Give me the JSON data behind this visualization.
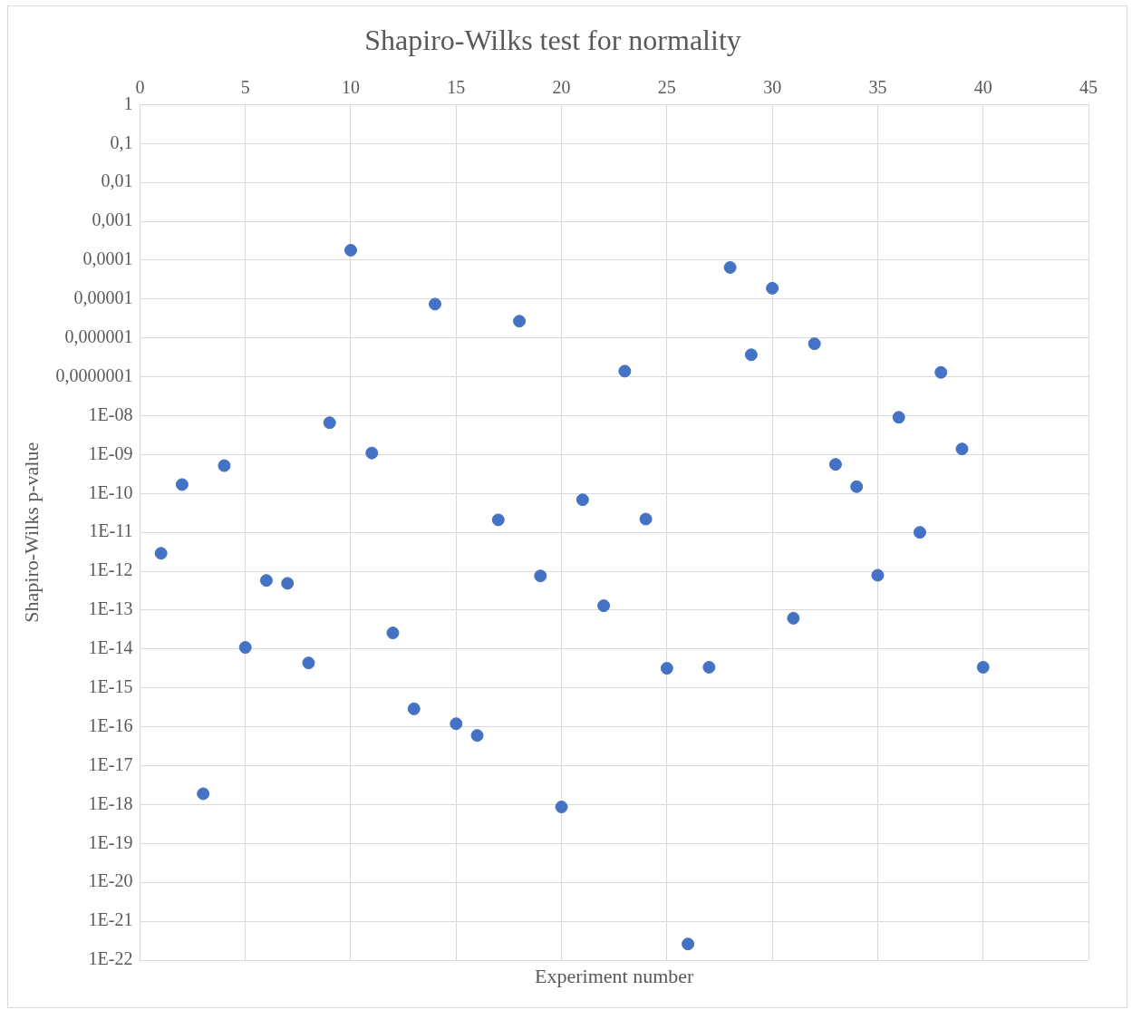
{
  "chart_data": {
    "type": "scatter",
    "title": "Shapiro-Wilks test for normality",
    "xlabel": "Experiment number",
    "ylabel": "Shapiro-Wilks p-value",
    "log": "y",
    "grid": true,
    "legend": false,
    "marker": "circle",
    "x": [
      1,
      2,
      3,
      4,
      5,
      6,
      7,
      8,
      9,
      10,
      11,
      12,
      13,
      14,
      15,
      16,
      17,
      18,
      19,
      20,
      21,
      22,
      23,
      24,
      25,
      26,
      27,
      28,
      29,
      30,
      31,
      32,
      33,
      34,
      35,
      36,
      37,
      38,
      39,
      40
    ],
    "series": [
      {
        "color": "#4472c4",
        "values": [
          2.9e-12,
          1.7e-10,
          1.9e-18,
          5.2e-10,
          1.1e-14,
          5.8e-13,
          4.9e-13,
          4.4e-15,
          6.6e-09,
          0.00018,
          1.1e-09,
          2.6e-14,
          2.9e-16,
          7.4e-06,
          1.2e-16,
          6e-17,
          2.1e-11,
          2.7e-06,
          7.6e-13,
          8.7e-19,
          6.9e-11,
          1.3e-13,
          1.4e-07,
          2.2e-11,
          3.2e-15,
          2.6e-22,
          3.4e-15,
          6.5e-05,
          3.7e-07,
          1.9e-05,
          6.2e-14,
          7.1e-07,
          5.6e-10,
          1.5e-10,
          7.9e-13,
          9.1e-09,
          1e-11,
          1.3e-07,
          1.4e-09,
          3.4e-15
        ]
      }
    ],
    "xlim": [
      0,
      45
    ],
    "xticks": [
      0,
      5,
      10,
      15,
      20,
      25,
      30,
      35,
      40,
      45
    ],
    "ylim": [
      1e-22,
      1
    ],
    "yticks": [
      1,
      {
        "value": 0.1,
        "label": "0,1"
      },
      {
        "value": 0.01,
        "label": "0,01"
      },
      {
        "value": 0.001,
        "label": "0,001"
      },
      {
        "value": 0.0001,
        "label": "0,0001"
      },
      {
        "value": 1e-05,
        "label": "0,00001"
      },
      {
        "value": 1e-06,
        "label": "0,000001"
      },
      {
        "value": 1e-07,
        "label": "0,0000001"
      },
      {
        "value": 1e-08,
        "label": "1E-08"
      },
      {
        "value": 1e-09,
        "label": "1E-09"
      },
      {
        "value": 1e-10,
        "label": "1E-10"
      },
      {
        "value": 1e-11,
        "label": "1E-11"
      },
      {
        "value": 1e-12,
        "label": "1E-12"
      },
      {
        "value": 1e-13,
        "label": "1E-13"
      },
      {
        "value": 1e-14,
        "label": "1E-14"
      },
      {
        "value": 1e-15,
        "label": "1E-15"
      },
      {
        "value": 1e-16,
        "label": "1E-16"
      },
      {
        "value": 1e-17,
        "label": "1E-17"
      },
      {
        "value": 1e-18,
        "label": "1E-18"
      },
      {
        "value": 1e-19,
        "label": "1E-19"
      },
      {
        "value": 1e-20,
        "label": "1E-20"
      },
      {
        "value": 1e-21,
        "label": "1E-21"
      },
      {
        "value": 1e-22,
        "label": "1E-22"
      }
    ]
  }
}
